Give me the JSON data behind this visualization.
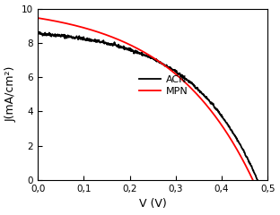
{
  "title": "",
  "xlabel": "V (V)",
  "ylabel": "J(mA/cm²)",
  "xlim": [
    0.0,
    0.5
  ],
  "ylim": [
    0,
    10
  ],
  "xticks": [
    0.0,
    0.1,
    0.2,
    0.3,
    0.4,
    0.5
  ],
  "yticks": [
    0,
    2,
    4,
    6,
    8,
    10
  ],
  "xtick_labels": [
    "0,0",
    "0,1",
    "0,2",
    "0,3",
    "0,4",
    "0,5"
  ],
  "ytick_labels": [
    "0",
    "2",
    "4",
    "6",
    "8",
    "10"
  ],
  "acn_color": "#000000",
  "mpn_color": "#ff0000",
  "legend_labels": [
    "ACN",
    "MPN"
  ],
  "background_color": "#ffffff",
  "linewidth": 1.3,
  "acn_jsc": 8.55,
  "acn_voc": 0.478,
  "acn_n": 5.5,
  "mpn_jsc": 9.45,
  "mpn_voc": 0.468,
  "mpn_n": 7.0,
  "noise_seed": 42,
  "noise_amplitude": 0.055,
  "noise_decay": 25.0
}
